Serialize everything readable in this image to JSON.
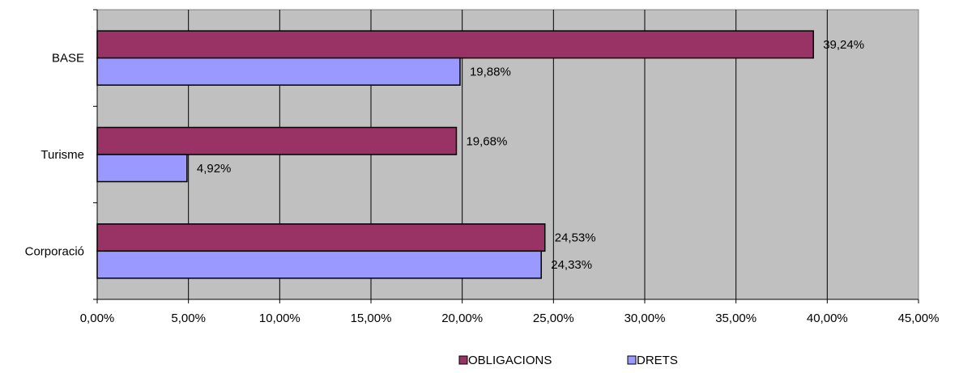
{
  "chart_data": {
    "type": "bar",
    "orientation": "horizontal",
    "categories": [
      "BASE",
      "Turisme",
      "Corporació"
    ],
    "series": [
      {
        "name": "OBLIGACIONS",
        "values": [
          39.24,
          19.68,
          24.53
        ],
        "labels": [
          "39,24%",
          "19,68%",
          "24,53%"
        ],
        "color": "#993366"
      },
      {
        "name": "DRETS",
        "values": [
          19.88,
          4.92,
          24.33
        ],
        "labels": [
          "19,88%",
          "4,92%",
          "24,33%"
        ],
        "color": "#9999ff"
      }
    ],
    "xlim": [
      0,
      45
    ],
    "x_ticks": [
      0,
      5,
      10,
      15,
      20,
      25,
      30,
      35,
      40,
      45
    ],
    "x_tick_labels": [
      "0,00%",
      "5,00%",
      "10,00%",
      "15,00%",
      "20,00%",
      "25,00%",
      "30,00%",
      "35,00%",
      "40,00%",
      "45,00%"
    ],
    "grid": true,
    "plot_background": "#c0c0c0",
    "legend_position": "bottom",
    "title": "",
    "xlabel": "",
    "ylabel": ""
  }
}
